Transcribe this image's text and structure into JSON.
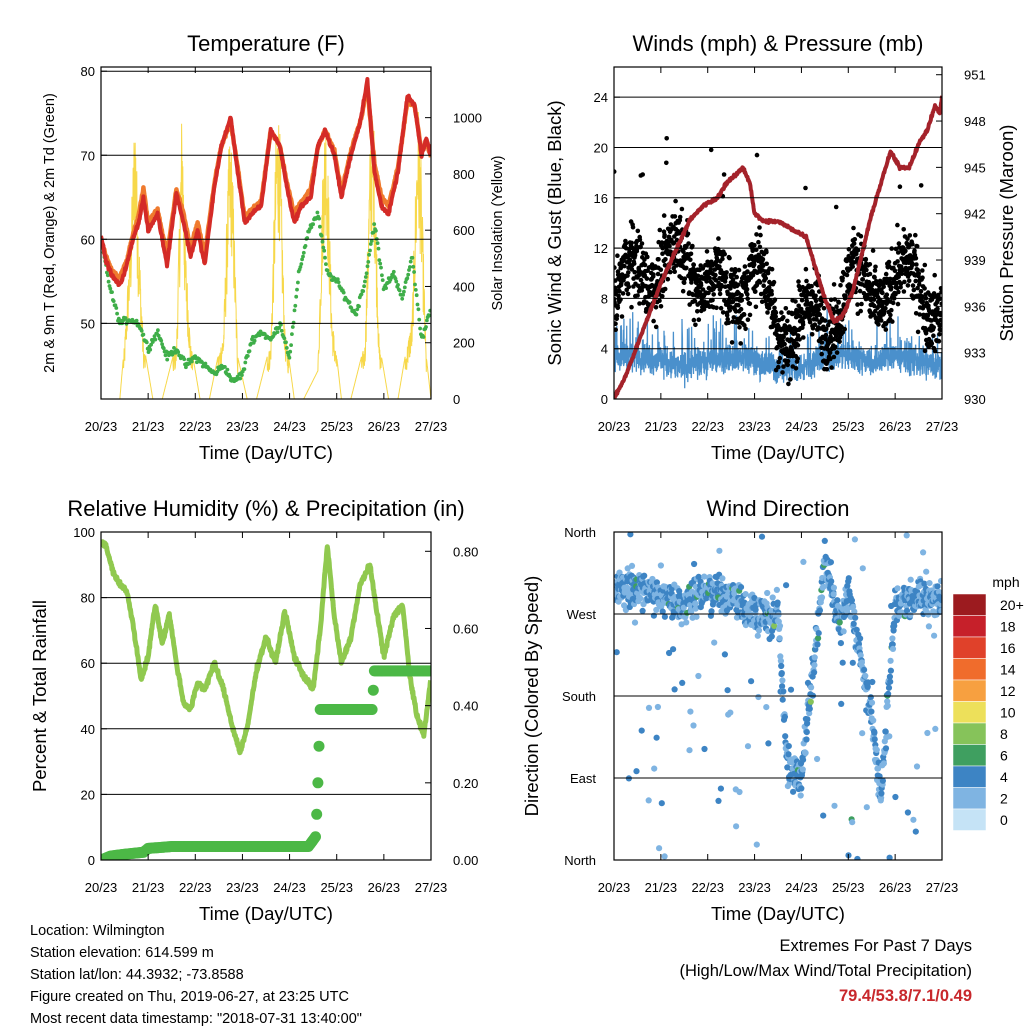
{
  "x_ticks": [
    "20/23",
    "21/23",
    "22/23",
    "23/23",
    "24/23",
    "25/23",
    "26/23",
    "27/23"
  ],
  "x_label": "Time (Day/UTC)",
  "chart_data": [
    {
      "id": "temperature",
      "type": "line",
      "title": "Temperature (F)",
      "xlabel": "Time (Day/UTC)",
      "ylabel": "2m & 9m T (Red, Orange) & 2m Td (Green)",
      "y2label": "Solar Insolation (Yellow)",
      "ylim": [
        41,
        80.5
      ],
      "y2lim": [
        0,
        1180
      ],
      "yticks": [
        50,
        60,
        70,
        80
      ],
      "y2ticks": [
        0,
        200,
        400,
        600,
        800,
        1000
      ],
      "grid_y": [
        50,
        60,
        70,
        80
      ],
      "x_days": [
        0,
        7
      ],
      "series": [
        {
          "legend": "Red",
          "color": "#d42b27",
          "x": [
            0,
            0.1,
            0.25,
            0.4,
            0.55,
            0.7,
            0.8,
            0.9,
            1.0,
            1.2,
            1.4,
            1.6,
            1.75,
            1.9,
            2.05,
            2.2,
            2.4,
            2.55,
            2.75,
            2.9,
            3.05,
            3.2,
            3.4,
            3.6,
            3.8,
            3.95,
            4.1,
            4.25,
            4.45,
            4.6,
            4.75,
            4.95,
            5.1,
            5.3,
            5.5,
            5.65,
            5.8,
            5.95,
            6.1,
            6.3,
            6.5,
            6.65,
            6.8,
            6.9,
            7.0
          ],
          "y": [
            60.5,
            57.5,
            55.5,
            54.5,
            57,
            60.5,
            62,
            65,
            61,
            63,
            57,
            65.5,
            62,
            58,
            61,
            57,
            66,
            71,
            74.5,
            68,
            62,
            63,
            64,
            73,
            71,
            66,
            62,
            64,
            65,
            71,
            73,
            70,
            65,
            70,
            74,
            79,
            68,
            64,
            63,
            68,
            77,
            76,
            70,
            72,
            70
          ]
        },
        {
          "legend": "Orange",
          "color": "#ef7a2e",
          "x": [
            0,
            0.1,
            0.25,
            0.4,
            0.55,
            0.7,
            0.8,
            0.9,
            1.0,
            1.2,
            1.4,
            1.6,
            1.75,
            1.9,
            2.05,
            2.2,
            2.4,
            2.55,
            2.75,
            2.9,
            3.05,
            3.2,
            3.4,
            3.6,
            3.8,
            3.95,
            4.1,
            4.25,
            4.45,
            4.6,
            4.75,
            4.95,
            5.1,
            5.3,
            5.5,
            5.65,
            5.8,
            5.95,
            6.1,
            6.3,
            6.5,
            6.65,
            6.8,
            6.9,
            7.0
          ],
          "y": [
            60,
            58,
            56,
            55.5,
            57.5,
            61,
            63,
            66,
            62,
            63.5,
            58,
            66,
            63,
            59,
            62,
            58,
            66.5,
            71,
            74,
            68.5,
            62.5,
            63.5,
            64.5,
            73,
            71,
            66.5,
            63,
            64.5,
            66,
            71,
            73,
            70.5,
            65.5,
            70.5,
            74,
            78,
            69,
            65,
            64,
            68.5,
            76.5,
            76,
            70.5,
            71.5,
            70
          ]
        },
        {
          "legend": "Green",
          "color": "#3fae49",
          "x": [
            0,
            0.2,
            0.4,
            0.6,
            0.8,
            1.0,
            1.2,
            1.4,
            1.6,
            1.8,
            2.0,
            2.2,
            2.4,
            2.6,
            2.8,
            3.0,
            3.2,
            3.4,
            3.6,
            3.8,
            4.0,
            4.2,
            4.4,
            4.6,
            4.8,
            5.0,
            5.2,
            5.4,
            5.6,
            5.8,
            6.0,
            6.2,
            6.4,
            6.6,
            6.8,
            7.0
          ],
          "y": [
            60,
            54,
            50,
            50.5,
            50,
            47,
            49,
            46,
            47,
            45,
            46,
            45,
            44,
            45,
            43,
            44,
            48,
            49,
            48,
            50,
            46,
            56,
            61,
            63,
            56,
            55,
            53,
            51,
            55,
            62,
            54,
            56,
            53,
            58,
            48,
            52
          ]
        },
        {
          "legend": "Yellow",
          "axis": "y2",
          "color": "#f7d84a",
          "x": [
            0,
            0.2,
            0.4,
            0.5,
            0.65,
            0.72,
            0.78,
            0.9,
            1.1,
            1.3,
            1.6,
            1.72,
            1.78,
            1.9,
            2.1,
            2.3,
            2.6,
            2.72,
            2.78,
            2.9,
            3.1,
            3.3,
            3.6,
            3.72,
            3.78,
            3.9,
            4.1,
            4.3,
            4.6,
            4.72,
            4.78,
            4.9,
            5.1,
            5.3,
            5.6,
            5.72,
            5.78,
            5.9,
            6.1,
            6.3,
            6.6,
            6.72,
            6.78,
            6.9,
            7.0
          ],
          "y": [
            0,
            0,
            0,
            200,
            700,
            1090,
            700,
            200,
            0,
            0,
            200,
            1090,
            600,
            200,
            0,
            0,
            250,
            950,
            900,
            150,
            0,
            0,
            200,
            1000,
            1050,
            250,
            0,
            0,
            100,
            950,
            1050,
            300,
            0,
            0,
            200,
            1000,
            1050,
            200,
            0,
            0,
            300,
            1080,
            900,
            150,
            0
          ]
        }
      ]
    },
    {
      "id": "winds",
      "type": "scatter",
      "title": "Winds (mph) & Pressure (mb)",
      "xlabel": "Time (Day/UTC)",
      "ylabel": "Sonic Wind & Gust (Blue, Black)",
      "y2label": "Station Pressure (Maroon)",
      "ylim": [
        0,
        26.4
      ],
      "y2lim": [
        930,
        951.5
      ],
      "yticks": [
        0,
        4,
        8,
        12,
        16,
        20,
        24
      ],
      "y2ticks": [
        930,
        933,
        936,
        939,
        942,
        945,
        948,
        951
      ],
      "grid_y": [
        4,
        8,
        12,
        16,
        20,
        24
      ],
      "x_days": [
        0,
        7
      ],
      "series": [
        {
          "legend": "Blue",
          "color": "#4a90cc",
          "x": [
            0,
            0.5,
            1,
            1.5,
            2,
            2.5,
            3,
            3.5,
            4,
            4.5,
            5,
            5.5,
            6,
            6.5,
            7
          ],
          "y": [
            3.5,
            3.5,
            3,
            2.5,
            3,
            3.5,
            3,
            2.5,
            2.5,
            3.5,
            3.5,
            3,
            3.5,
            3,
            2.5
          ]
        },
        {
          "legend": "Black",
          "color": "#000000",
          "x": [
            0,
            0.5,
            1,
            1.5,
            2,
            2.5,
            3,
            3.5,
            4,
            4.5,
            5,
            5.5,
            6,
            6.5,
            7
          ],
          "y": [
            7,
            11,
            10,
            12,
            9,
            8,
            11,
            5,
            7,
            5,
            10,
            8,
            10,
            9,
            7
          ]
        },
        {
          "legend": "Maroon",
          "axis": "y2",
          "color": "#a4222a",
          "x": [
            0,
            0.25,
            0.5,
            0.75,
            1,
            1.3,
            1.6,
            1.9,
            2.2,
            2.4,
            2.6,
            2.75,
            2.9,
            3.0,
            3.2,
            3.5,
            3.8,
            4.1,
            4.3,
            4.5,
            4.7,
            4.9,
            5.1,
            5.3,
            5.5,
            5.7,
            5.9,
            6.1,
            6.3,
            6.5,
            6.7,
            6.85,
            6.95,
            7.0
          ],
          "y": [
            930,
            931.5,
            933.5,
            935.5,
            937.5,
            939.5,
            941.5,
            942.5,
            943,
            944,
            944.5,
            945,
            944,
            942,
            941.5,
            941.5,
            941,
            940.5,
            938.5,
            936.5,
            935,
            935.5,
            937,
            939.5,
            942,
            944,
            946,
            945,
            945,
            946.5,
            947.5,
            949,
            948.5,
            949.5
          ]
        }
      ]
    },
    {
      "id": "humidity",
      "type": "line",
      "title": "Relative Humidity (%) & Precipitation (in)",
      "xlabel": "Time (Day/UTC)",
      "ylabel": "Percent & Total Rainfall",
      "ylim": [
        0,
        100
      ],
      "y2lim": [
        0,
        0.85
      ],
      "yticks": [
        0,
        20,
        40,
        60,
        80,
        100
      ],
      "y2ticks": [
        0.0,
        0.2,
        0.4,
        0.6,
        0.8
      ],
      "y2tick_labels": [
        "0.00",
        "0.20",
        "0.40",
        "0.60",
        "0.80"
      ],
      "grid_y": [
        20,
        40,
        60,
        80
      ],
      "x_days": [
        0,
        7
      ],
      "series": [
        {
          "legend": "Relative Humidity",
          "color": "#90c94f",
          "x": [
            0,
            0.1,
            0.25,
            0.4,
            0.55,
            0.7,
            0.85,
            1.0,
            1.15,
            1.3,
            1.45,
            1.6,
            1.75,
            1.9,
            2.05,
            2.2,
            2.4,
            2.6,
            2.8,
            2.95,
            3.1,
            3.3,
            3.5,
            3.7,
            3.9,
            4.1,
            4.3,
            4.5,
            4.65,
            4.8,
            4.95,
            5.1,
            5.3,
            5.5,
            5.7,
            5.85,
            6.0,
            6.2,
            6.4,
            6.55,
            6.7,
            6.85,
            7.0
          ],
          "y": [
            97,
            96,
            88,
            84,
            82,
            70,
            55,
            62,
            78,
            66,
            75,
            60,
            48,
            46,
            54,
            52,
            60,
            52,
            40,
            33,
            40,
            58,
            68,
            60,
            76,
            62,
            56,
            52,
            70,
            96,
            74,
            60,
            68,
            84,
            90,
            76,
            62,
            74,
            78,
            56,
            44,
            38,
            56
          ]
        },
        {
          "legend": "Total Precipitation",
          "axis": "y2",
          "color": "#4cb846",
          "x": [
            0,
            0.2,
            0.5,
            0.9,
            1.0,
            1.5,
            2,
            2.5,
            3,
            3.5,
            4,
            4.4,
            4.55,
            4.58,
            4.6,
            4.65,
            5,
            5.2,
            5.5,
            5.75,
            5.8,
            6,
            6.5,
            7
          ],
          "y": [
            0.0,
            0.01,
            0.015,
            0.02,
            0.03,
            0.035,
            0.035,
            0.035,
            0.035,
            0.035,
            0.035,
            0.035,
            0.06,
            0.13,
            0.2,
            0.39,
            0.39,
            0.39,
            0.39,
            0.39,
            0.49,
            0.49,
            0.49,
            0.49
          ]
        }
      ]
    },
    {
      "id": "direction",
      "type": "scatter",
      "title": "Wind Direction",
      "xlabel": "Time (Day/UTC)",
      "ylabel": "Direction (Colored By Speed)",
      "ylim": [
        0,
        360
      ],
      "ytick_values": [
        0,
        90,
        180,
        270,
        360
      ],
      "ytick_labels": [
        "North",
        "East",
        "South",
        "West",
        "North"
      ],
      "grid_y": [
        90,
        180,
        270
      ],
      "x_days": [
        0,
        7
      ],
      "legend": {
        "title": "mph",
        "placement": "right",
        "labels": [
          "20+",
          "18",
          "16",
          "14",
          "12",
          "10",
          "8",
          "6",
          "4",
          "2",
          "0"
        ],
        "colors": [
          "#9c1b1f",
          "#c6202a",
          "#e0412a",
          "#f06c2c",
          "#f7a040",
          "#ede05a",
          "#86c35a",
          "#3f9f60",
          "#3d84c4",
          "#7fb4e2",
          "#c5e3f6"
        ]
      },
      "series": [
        {
          "legend": "Wind Direction",
          "x": [
            0,
            0.5,
            1,
            1.5,
            2,
            2.5,
            3,
            3.5,
            3.7,
            4,
            4.5,
            4.8,
            5,
            5.5,
            5.7,
            6,
            6.5,
            7
          ],
          "y": [
            300,
            300,
            290,
            280,
            300,
            290,
            270,
            270,
            100,
            90,
            330,
            260,
            290,
            160,
            70,
            280,
            290,
            280
          ]
        }
      ]
    }
  ],
  "info": {
    "location": "Location: Wilmington",
    "elevation": "Station elevation: 614.599 m",
    "latlon": "Station lat/lon: 44.3932; -73.8588",
    "created": "Figure created on Thu, 2019-06-27, at 23:25 UTC",
    "timestamp": "Most recent data timestamp: \"2018-07-31 13:40:00\""
  },
  "extremes": {
    "title": "Extremes For Past 7 Days",
    "subtitle": "(High/Low/Max Wind/Total Precipitation)",
    "values": "79.4/53.8/7.1/0.49"
  }
}
